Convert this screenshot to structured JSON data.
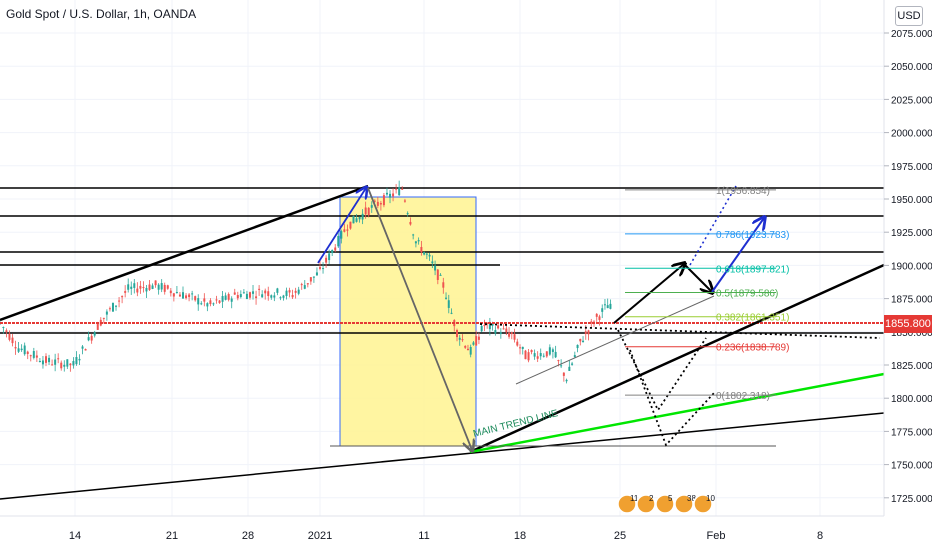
{
  "header": {
    "title": "Gold Spot / U.S. Dollar, 1h, OANDA",
    "currency_button": "USD"
  },
  "price_axis": {
    "ticks": [
      "2075.000",
      "2050.000",
      "2025.000",
      "2000.000",
      "1975.000",
      "1950.000",
      "1925.000",
      "1900.000",
      "1875.000",
      "1850.000",
      "1825.000",
      "1800.000",
      "1775.000",
      "1750.000",
      "1725.000"
    ],
    "current_price_label": "1855.800"
  },
  "time_axis": {
    "ticks": [
      "14",
      "21",
      "28",
      "2021",
      "11",
      "18",
      "25",
      "Feb",
      "8"
    ]
  },
  "fibonacci": {
    "levels": [
      {
        "label": "1(1956.854)",
        "value": 1956.854,
        "color": "#808080"
      },
      {
        "label": "0.786(1923.783)",
        "value": 1923.783,
        "color": "#2196f3"
      },
      {
        "label": "0.618(1897.821)",
        "value": 1897.821,
        "color": "#00bfa5"
      },
      {
        "label": "0.5(1879.586)",
        "value": 1879.586,
        "color": "#4caf50"
      },
      {
        "label": "0.382(1861.351)",
        "value": 1861.351,
        "color": "#9acd32"
      },
      {
        "label": "0.236(1838.789)",
        "value": 1838.789,
        "color": "#e53935"
      },
      {
        "label": "0(1802.318)",
        "value": 1802.318,
        "color": "#808080"
      }
    ]
  },
  "annotations": {
    "trend_label": "MAIN TREND LINE"
  },
  "events": {
    "counts": [
      "11",
      "2",
      "5",
      "38",
      "10"
    ]
  },
  "colors": {
    "current_price": "#e53935",
    "main_trend": "#00e600",
    "candle_up": "#26a69a",
    "candle_down": "#ef5350",
    "box_fill": "#fff59d"
  },
  "chart_data": {
    "type": "candlestick",
    "symbol": "XAUUSD",
    "interval": "1h",
    "y_axis": {
      "min": 1710,
      "max": 2085,
      "side": "right"
    },
    "current_price": 1855.8,
    "price_path": [
      {
        "x": "Dec 7",
        "y": 1866
      },
      {
        "x": "Dec 9",
        "y": 1838
      },
      {
        "x": "Dec 11",
        "y": 1828
      },
      {
        "x": "Dec 13",
        "y": 1825
      },
      {
        "x": "Dec 15",
        "y": 1858
      },
      {
        "x": "Dec 17",
        "y": 1882
      },
      {
        "x": "Dec 19",
        "y": 1885
      },
      {
        "x": "Dec 21",
        "y": 1878
      },
      {
        "x": "Dec 23",
        "y": 1870
      },
      {
        "x": "Dec 25",
        "y": 1878
      },
      {
        "x": "Dec 27",
        "y": 1880
      },
      {
        "x": "Dec 29",
        "y": 1878
      },
      {
        "x": "Dec 31",
        "y": 1895
      },
      {
        "x": "Jan 2",
        "y": 1930
      },
      {
        "x": "Jan 4",
        "y": 1945
      },
      {
        "x": "Jan 6",
        "y": 1958
      },
      {
        "x": "Jan 7",
        "y": 1918
      },
      {
        "x": "Jan 8",
        "y": 1905
      },
      {
        "x": "Jan 9",
        "y": 1885
      },
      {
        "x": "Jan 10",
        "y": 1850
      },
      {
        "x": "Jan 11",
        "y": 1835
      },
      {
        "x": "Jan 12",
        "y": 1855
      },
      {
        "x": "Jan 13",
        "y": 1852
      },
      {
        "x": "Jan 14",
        "y": 1848
      },
      {
        "x": "Jan 15",
        "y": 1832
      },
      {
        "x": "Jan 17",
        "y": 1835
      },
      {
        "x": "Jan 18",
        "y": 1815
      },
      {
        "x": "Jan 19",
        "y": 1842
      },
      {
        "x": "Jan 20",
        "y": 1858
      },
      {
        "x": "Jan 21",
        "y": 1870
      },
      {
        "x": "Jan 22",
        "y": 1858
      },
      {
        "x": "Jan 23",
        "y": 1855
      },
      {
        "x": "Jan 24",
        "y": 1856
      }
    ],
    "horizontal_levels": [
      1959,
      1936,
      1910,
      1900,
      1855.8,
      1846
    ],
    "projections": [
      {
        "from": {
          "x": "Jan 25",
          "y": 1858
        },
        "to": {
          "x": "Jan 30",
          "y": 1900
        }
      },
      {
        "from": {
          "x": "Jan 30",
          "y": 1900
        },
        "to": {
          "x": "Feb 1",
          "y": 1880
        }
      },
      {
        "from": {
          "x": "Feb 1",
          "y": 1880
        },
        "to": {
          "x": "Feb 3",
          "y": 1937
        }
      }
    ]
  }
}
